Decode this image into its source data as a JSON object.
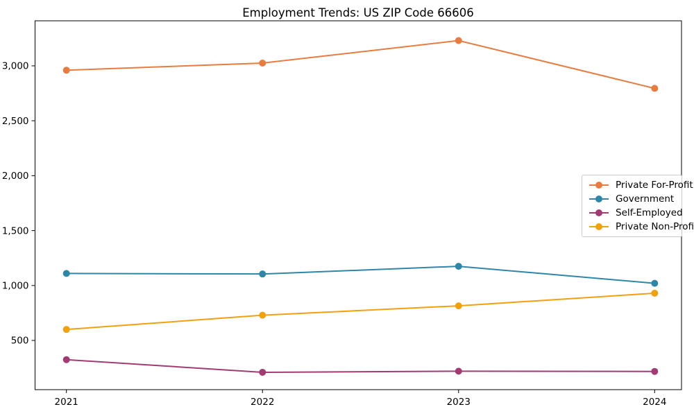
{
  "chart_data": {
    "type": "line",
    "title": "Employment Trends: US ZIP Code 66606",
    "xlabel": "",
    "ylabel": "",
    "categories": [
      "2021",
      "2022",
      "2023",
      "2024"
    ],
    "series": [
      {
        "name": "Private For-Profit",
        "color": "#E97B3F",
        "values": [
          2960,
          3025,
          3230,
          2795
        ]
      },
      {
        "name": "Government",
        "color": "#2E86A8",
        "values": [
          1110,
          1105,
          1175,
          1020
        ]
      },
      {
        "name": "Self-Employed",
        "color": "#A23B72",
        "values": [
          325,
          210,
          220,
          218
        ]
      },
      {
        "name": "Private Non-Profit",
        "color": "#F2A10E",
        "values": [
          600,
          730,
          815,
          930
        ]
      }
    ],
    "ylim": [
      52,
      3410
    ],
    "yticks": [
      500,
      1000,
      1500,
      2000,
      2500,
      3000
    ],
    "ytick_labels": [
      "500",
      "1,000",
      "1,500",
      "2,000",
      "2,500",
      "3,000"
    ],
    "grid": false,
    "legend_position": "center-right",
    "marker": "circle",
    "axis_color": "#000000"
  }
}
